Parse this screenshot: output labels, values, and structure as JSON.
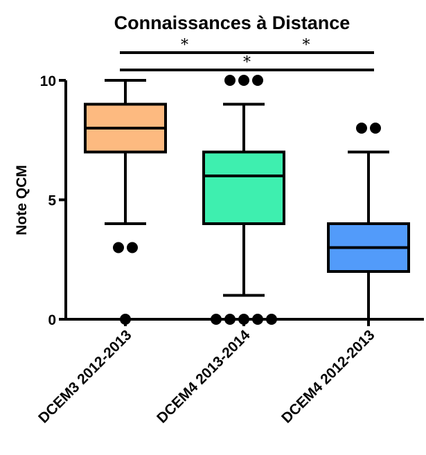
{
  "chart_data": {
    "type": "box",
    "title": "Connaissances à Distance",
    "ylabel": "Note QCM",
    "xlabel": "",
    "ylim": [
      0,
      10
    ],
    "yticks": [
      0,
      5,
      10
    ],
    "categories": [
      "DCEM3 2012-2013",
      "DCEM4 2013-2014",
      "DCEM4 2012-2013"
    ],
    "boxes": [
      {
        "name": "DCEM3 2012-2013",
        "whisker_low": 4,
        "q1": 7,
        "median": 8,
        "q3": 9,
        "whisker_high": 10,
        "outliers": [
          3,
          3,
          0
        ],
        "color": "#FDBA80"
      },
      {
        "name": "DCEM4 2013-2014",
        "whisker_low": 1,
        "q1": 4,
        "median": 6,
        "q3": 7,
        "whisker_high": 9,
        "outliers": [
          10,
          10,
          10,
          0,
          0,
          0,
          0,
          0
        ],
        "color": "#3EEFAF"
      },
      {
        "name": "DCEM4 2012-2013",
        "whisker_low": 0,
        "q1": 2,
        "median": 3,
        "q3": 4,
        "whisker_high": 7,
        "outliers": [
          8,
          8
        ],
        "color": "#529BFA"
      }
    ],
    "significance": [
      {
        "from": 0,
        "to": 1,
        "label": "*"
      },
      {
        "from": 1,
        "to": 2,
        "label": "*"
      },
      {
        "from": 0,
        "to": 2,
        "label": "*"
      }
    ],
    "grid": false,
    "legend": "none"
  }
}
